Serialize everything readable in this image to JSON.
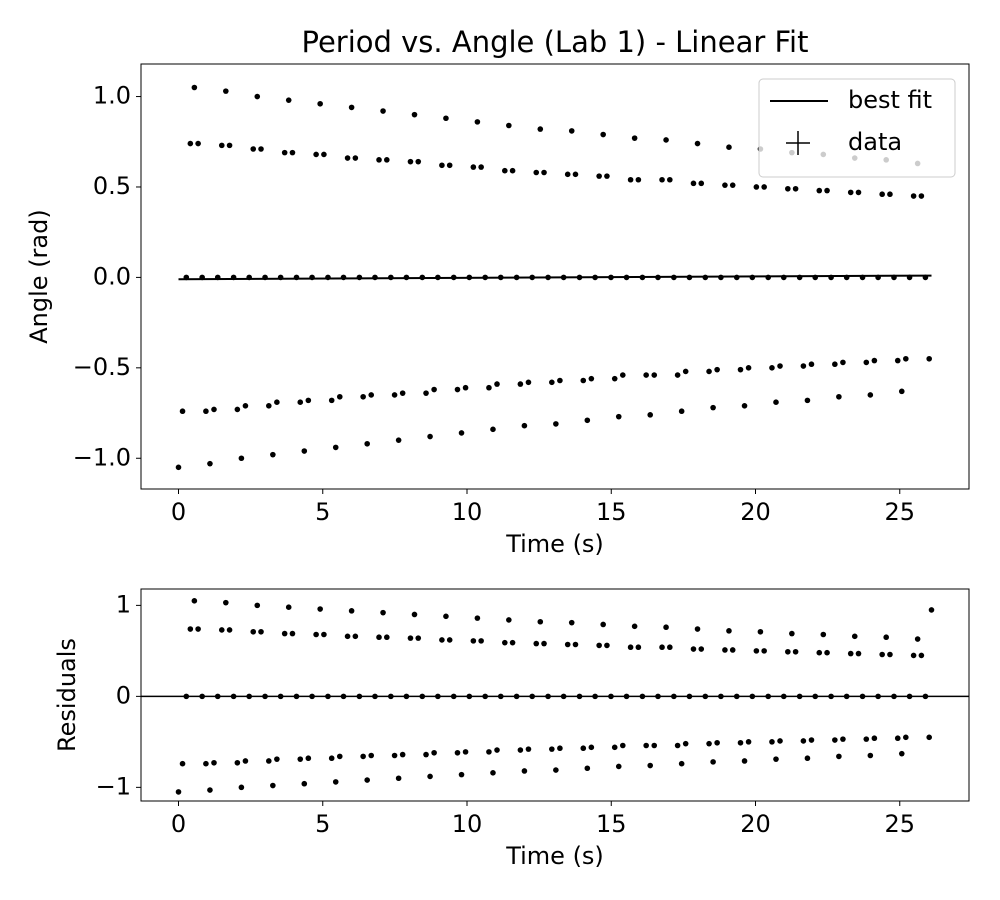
{
  "chart_data": [
    {
      "type": "scatter",
      "title": "Period vs. Angle (Lab 1) - Linear Fit",
      "xlabel": "Time (s)",
      "ylabel": "Angle (rad)",
      "xlim": [
        -1.3,
        27.4
      ],
      "ylim": [
        -1.17,
        1.18
      ],
      "xticks": [
        0,
        5,
        10,
        15,
        20,
        25
      ],
      "yticks": [
        {
          "value": -1,
          "label": "−1.0"
        },
        {
          "value": -0.5,
          "label": "−0.5"
        },
        {
          "value": 0,
          "label": "0.0"
        },
        {
          "value": 0.5,
          "label": "0.5"
        },
        {
          "value": 1,
          "label": "1.0"
        }
      ],
      "legend": "upper right",
      "series": [
        {
          "name": "best fit",
          "color": "#000000",
          "style": "line",
          "x": [
            0,
            26.1
          ],
          "values": [
            -0.01,
            0.01
          ]
        },
        {
          "name": "data",
          "color": "#000000",
          "style": "errorbar",
          "x": [
            0,
            0.14,
            0.27,
            0.41,
            0.55,
            0.68,
            0.82,
            0.95,
            1.09,
            1.23,
            1.36,
            1.5,
            1.64,
            1.77,
            1.91,
            2.04,
            2.18,
            2.32,
            2.45,
            2.59,
            2.73,
            2.86,
            3.0,
            3.13,
            3.27,
            3.41,
            3.54,
            3.68,
            3.82,
            3.95,
            4.09,
            4.22,
            4.36,
            4.5,
            4.63,
            4.77,
            4.91,
            5.04,
            5.18,
            5.31,
            5.45,
            5.59,
            5.72,
            5.86,
            6.0,
            6.13,
            6.27,
            6.4,
            6.54,
            6.68,
            6.81,
            6.95,
            7.09,
            7.22,
            7.36,
            7.49,
            7.63,
            7.77,
            7.9,
            8.04,
            8.18,
            8.31,
            8.45,
            8.58,
            8.72,
            8.86,
            8.99,
            9.13,
            9.27,
            9.4,
            9.54,
            9.67,
            9.81,
            9.95,
            10.08,
            10.22,
            10.36,
            10.49,
            10.63,
            10.76,
            10.9,
            11.04,
            11.17,
            11.31,
            11.45,
            11.58,
            11.72,
            11.85,
            11.99,
            12.13,
            12.26,
            12.4,
            12.54,
            12.67,
            12.81,
            12.94,
            13.08,
            13.22,
            13.35,
            13.49,
            13.63,
            13.76,
            13.9,
            14.03,
            14.17,
            14.31,
            14.44,
            14.58,
            14.72,
            14.85,
            14.99,
            15.12,
            15.26,
            15.4,
            15.53,
            15.67,
            15.81,
            15.94,
            16.08,
            16.21,
            16.35,
            16.49,
            16.62,
            16.76,
            16.9,
            17.03,
            17.17,
            17.3,
            17.44,
            17.58,
            17.71,
            17.85,
            17.99,
            18.12,
            18.26,
            18.39,
            18.53,
            18.67,
            18.8,
            18.94,
            19.08,
            19.21,
            19.35,
            19.48,
            19.62,
            19.76,
            19.89,
            20.03,
            20.17,
            20.3,
            20.44,
            20.57,
            20.71,
            20.85,
            20.98,
            21.12,
            21.26,
            21.39,
            21.53,
            21.66,
            21.8,
            21.94,
            22.07,
            22.21,
            22.35,
            22.48,
            22.62,
            22.75,
            22.89,
            23.03,
            23.16,
            23.3,
            23.44,
            23.57,
            23.71,
            23.84,
            23.98,
            24.12,
            24.25,
            24.39,
            24.53,
            24.66,
            24.8,
            24.93,
            25.07,
            25.21,
            25.34,
            25.48,
            25.62,
            25.75,
            25.89,
            26.02
          ],
          "values": [
            -1.05,
            -0.74,
            0,
            0.74,
            1.05,
            0.74,
            0,
            -0.74,
            -1.03,
            -0.73,
            0,
            0.73,
            1.03,
            0.73,
            0,
            -0.73,
            -1,
            -0.71,
            0,
            0.71,
            1,
            0.71,
            0,
            -0.71,
            -0.98,
            -0.69,
            0,
            0.69,
            0.98,
            0.69,
            0,
            -0.69,
            -0.96,
            -0.68,
            0,
            0.68,
            0.96,
            0.68,
            0,
            -0.68,
            -0.94,
            -0.66,
            0,
            0.66,
            0.94,
            0.66,
            0,
            -0.66,
            -0.92,
            -0.65,
            0,
            0.65,
            0.92,
            0.65,
            0,
            -0.65,
            -0.9,
            -0.64,
            0,
            0.64,
            0.9,
            0.64,
            0,
            -0.64,
            -0.88,
            -0.62,
            0,
            0.62,
            0.88,
            0.62,
            0,
            -0.62,
            -0.86,
            -0.61,
            0,
            0.61,
            0.86,
            0.61,
            0,
            -0.61,
            -0.84,
            -0.59,
            0,
            0.59,
            0.84,
            0.59,
            0,
            -0.59,
            -0.82,
            -0.58,
            0,
            0.58,
            0.82,
            0.58,
            0,
            -0.58,
            -0.81,
            -0.57,
            0,
            0.57,
            0.81,
            0.57,
            0,
            -0.57,
            -0.79,
            -0.56,
            0,
            0.56,
            0.79,
            0.56,
            0,
            -0.56,
            -0.77,
            -0.54,
            0,
            0.54,
            0.77,
            0.54,
            0,
            -0.54,
            -0.76,
            -0.54,
            0,
            0.54,
            0.76,
            0.54,
            0,
            -0.54,
            -0.74,
            -0.52,
            0,
            0.52,
            0.74,
            0.52,
            0,
            -0.52,
            -0.72,
            -0.51,
            0,
            0.51,
            0.72,
            0.51,
            0,
            -0.51,
            -0.71,
            -0.5,
            0,
            0.5,
            0.71,
            0.5,
            0,
            -0.5,
            -0.69,
            -0.49,
            0,
            0.49,
            0.69,
            0.49,
            0,
            -0.49,
            -0.68,
            -0.48,
            0,
            0.48,
            0.68,
            0.48,
            0,
            -0.48,
            -0.66,
            -0.47,
            0,
            0.47,
            0.66,
            0.47,
            0,
            -0.47,
            -0.65,
            -0.46,
            0,
            0.46,
            0.65,
            0.46,
            0,
            -0.46,
            -0.63,
            -0.45,
            0,
            0.45,
            0.63,
            0.45,
            0,
            -0.45
          ]
        }
      ]
    },
    {
      "type": "scatter",
      "xlabel": "Time (s)",
      "ylabel": "Residuals",
      "xlim": [
        -1.3,
        27.4
      ],
      "ylim": [
        -1.15,
        1.18
      ],
      "xticks": [
        0,
        5,
        10,
        15,
        20,
        25
      ],
      "yticks": [
        {
          "value": -1,
          "label": "−1"
        },
        0,
        1
      ],
      "hline": 0,
      "series": [
        {
          "color": "#000000",
          "style": "points",
          "x": [
            0,
            0.14,
            0.27,
            0.41,
            0.55,
            0.68,
            0.82,
            0.95,
            1.09,
            1.23,
            1.36,
            1.5,
            1.64,
            1.77,
            1.91,
            2.04,
            2.18,
            2.32,
            2.45,
            2.59,
            2.73,
            2.86,
            3.0,
            3.13,
            3.27,
            3.41,
            3.54,
            3.68,
            3.82,
            3.95,
            4.09,
            4.22,
            4.36,
            4.5,
            4.63,
            4.77,
            4.91,
            5.04,
            5.18,
            5.31,
            5.45,
            5.59,
            5.72,
            5.86,
            6.0,
            6.13,
            6.27,
            6.4,
            6.54,
            6.68,
            6.81,
            6.95,
            7.09,
            7.22,
            7.36,
            7.49,
            7.63,
            7.77,
            7.9,
            8.04,
            8.18,
            8.31,
            8.45,
            8.58,
            8.72,
            8.86,
            8.99,
            9.13,
            9.27,
            9.4,
            9.54,
            9.67,
            9.81,
            9.95,
            10.08,
            10.22,
            10.36,
            10.49,
            10.63,
            10.76,
            10.9,
            11.04,
            11.17,
            11.31,
            11.45,
            11.58,
            11.72,
            11.85,
            11.99,
            12.13,
            12.26,
            12.4,
            12.54,
            12.67,
            12.81,
            12.94,
            13.08,
            13.22,
            13.35,
            13.49,
            13.63,
            13.76,
            13.9,
            14.03,
            14.17,
            14.31,
            14.44,
            14.58,
            14.72,
            14.85,
            14.99,
            15.12,
            15.26,
            15.4,
            15.53,
            15.67,
            15.81,
            15.94,
            16.08,
            16.21,
            16.35,
            16.49,
            16.62,
            16.76,
            16.9,
            17.03,
            17.17,
            17.3,
            17.44,
            17.58,
            17.71,
            17.85,
            17.99,
            18.12,
            18.26,
            18.39,
            18.53,
            18.67,
            18.8,
            18.94,
            19.08,
            19.21,
            19.35,
            19.48,
            19.62,
            19.76,
            19.89,
            20.03,
            20.17,
            20.3,
            20.44,
            20.57,
            20.71,
            20.85,
            20.98,
            21.12,
            21.26,
            21.39,
            21.53,
            21.66,
            21.8,
            21.94,
            22.07,
            22.21,
            22.35,
            22.48,
            22.62,
            22.75,
            22.89,
            23.03,
            23.16,
            23.3,
            23.44,
            23.57,
            23.71,
            23.84,
            23.98,
            24.12,
            24.25,
            24.39,
            24.53,
            24.66,
            24.8,
            24.93,
            25.07,
            25.21,
            25.34,
            25.48,
            25.62,
            25.75,
            25.89,
            26.02,
            26.1
          ],
          "values": [
            -1.05,
            -0.74,
            0,
            0.74,
            1.05,
            0.74,
            0,
            -0.74,
            -1.03,
            -0.73,
            0,
            0.73,
            1.03,
            0.73,
            0,
            -0.73,
            -1,
            -0.71,
            0,
            0.71,
            1,
            0.71,
            0,
            -0.71,
            -0.98,
            -0.69,
            0,
            0.69,
            0.98,
            0.69,
            0,
            -0.69,
            -0.96,
            -0.68,
            0,
            0.68,
            0.96,
            0.68,
            0,
            -0.68,
            -0.94,
            -0.66,
            0,
            0.66,
            0.94,
            0.66,
            0,
            -0.66,
            -0.92,
            -0.65,
            0,
            0.65,
            0.92,
            0.65,
            0,
            -0.65,
            -0.9,
            -0.64,
            0,
            0.64,
            0.9,
            0.64,
            0,
            -0.64,
            -0.88,
            -0.62,
            0,
            0.62,
            0.88,
            0.62,
            0,
            -0.62,
            -0.86,
            -0.61,
            0,
            0.61,
            0.86,
            0.61,
            0,
            -0.61,
            -0.84,
            -0.59,
            0,
            0.59,
            0.84,
            0.59,
            0,
            -0.59,
            -0.82,
            -0.58,
            0,
            0.58,
            0.82,
            0.58,
            0,
            -0.58,
            -0.81,
            -0.57,
            0,
            0.57,
            0.81,
            0.57,
            0,
            -0.57,
            -0.79,
            -0.56,
            0,
            0.56,
            0.79,
            0.56,
            0,
            -0.56,
            -0.77,
            -0.54,
            0,
            0.54,
            0.77,
            0.54,
            0,
            -0.54,
            -0.76,
            -0.54,
            0,
            0.54,
            0.76,
            0.54,
            0,
            -0.54,
            -0.74,
            -0.52,
            0,
            0.52,
            0.74,
            0.52,
            0,
            -0.52,
            -0.72,
            -0.51,
            0,
            0.51,
            0.72,
            0.51,
            0,
            -0.51,
            -0.71,
            -0.5,
            0,
            0.5,
            0.71,
            0.5,
            0,
            -0.5,
            -0.69,
            -0.49,
            0,
            0.49,
            0.69,
            0.49,
            0,
            -0.49,
            -0.68,
            -0.48,
            0,
            0.48,
            0.68,
            0.48,
            0,
            -0.48,
            -0.66,
            -0.47,
            0,
            0.47,
            0.66,
            0.47,
            0,
            -0.47,
            -0.65,
            -0.46,
            0,
            0.46,
            0.65,
            0.46,
            0,
            -0.46,
            -0.63,
            -0.45,
            0,
            0.45,
            0.63,
            0.45,
            0,
            -0.45,
            0.95
          ]
        }
      ]
    }
  ]
}
